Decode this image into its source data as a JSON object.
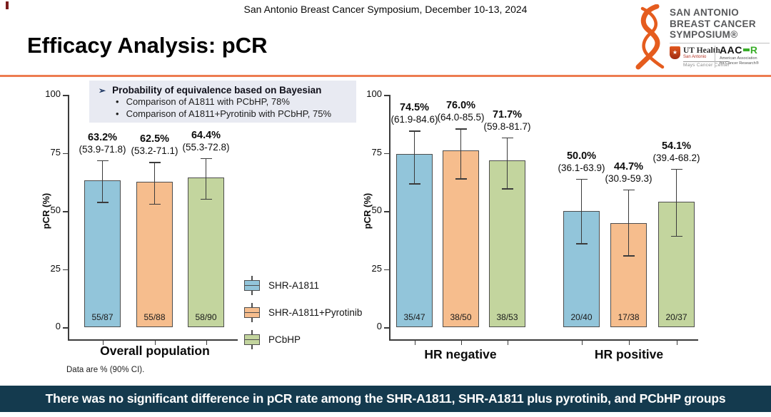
{
  "header": {
    "conference": "San Antonio Breast Cancer Symposium, December 10-13, 2024",
    "title": "Efficacy Analysis: pCR"
  },
  "logo": {
    "name_line1": "SAN ANTONIO",
    "name_line2": "BREAST CANCER",
    "name_line3": "SYMPOSIUM®",
    "ut_health": {
      "star": "★",
      "name": "UT Health",
      "city": "San Antonio",
      "center": "Mays Cancer Center"
    },
    "aacr": {
      "abbr_black": "AAC",
      "abbr_green": "R",
      "tagline_line1": "American Association",
      "tagline_line2": "for Cancer Research®"
    }
  },
  "info_box": {
    "arrow_marker": "➢",
    "bullet_marker": "•",
    "heading": "Probability of equivalence based on Bayesian",
    "bullets": [
      "Comparison of A1811 with PCbHP, 78%",
      "Comparison of A1811+Pyrotinib with PCbHP, 75%"
    ]
  },
  "legend": {
    "items": [
      {
        "label": "SHR-A1811",
        "color": "#92c5da"
      },
      {
        "label": "SHR-A1811+Pyrotinib",
        "color": "#f6bd8d"
      },
      {
        "label": "PCbHP",
        "color": "#c3d59e"
      }
    ]
  },
  "footnote": "Data are % (90% CI).",
  "banner": "There was no significant difference in pCR rate among the SHR-A1811, SHR-A1811 plus pyrotinib, and PCbHP groups",
  "colors": {
    "accent_rule": "#ed7c50",
    "banner_bg": "#143a4e",
    "info_box_bg": "#e8eaf2",
    "sabcs_orange": "#e55c1e",
    "aacr_green": "#3aae2a"
  },
  "chart_data": [
    {
      "type": "bar",
      "title": "",
      "xlabel": "Overall population",
      "ylabel": "pCR (%)",
      "ylim": [
        0,
        100
      ],
      "yticks": [
        0,
        25,
        50,
        75,
        100
      ],
      "grid": false,
      "error_bars": "90% CI",
      "groups": [
        {
          "label": "Overall population",
          "bars": [
            {
              "series": "SHR-A1811",
              "value": 63.2,
              "ci_low": 53.9,
              "ci_high": 71.8,
              "pct_label": "63.2%",
              "ci_label": "(53.9-71.8)",
              "fraction": "55/87"
            },
            {
              "series": "SHR-A1811+Pyrotinib",
              "value": 62.5,
              "ci_low": 53.2,
              "ci_high": 71.1,
              "pct_label": "62.5%",
              "ci_label": "(53.2-71.1)",
              "fraction": "55/88"
            },
            {
              "series": "PCbHP",
              "value": 64.4,
              "ci_low": 55.3,
              "ci_high": 72.8,
              "pct_label": "64.4%",
              "ci_label": "(55.3-72.8)",
              "fraction": "58/90"
            }
          ]
        }
      ]
    },
    {
      "type": "bar",
      "title": "",
      "xlabel": "",
      "ylabel": "pCR (%)",
      "ylim": [
        0,
        100
      ],
      "yticks": [
        0,
        25,
        50,
        75,
        100
      ],
      "grid": false,
      "error_bars": "90% CI",
      "groups": [
        {
          "label": "HR negative",
          "bars": [
            {
              "series": "SHR-A1811",
              "value": 74.5,
              "ci_low": 61.9,
              "ci_high": 84.6,
              "pct_label": "74.5%",
              "ci_label": "(61.9-84.6)",
              "fraction": "35/47"
            },
            {
              "series": "SHR-A1811+Pyrotinib",
              "value": 76.0,
              "ci_low": 64.0,
              "ci_high": 85.5,
              "pct_label": "76.0%",
              "ci_label": "(64.0-85.5)",
              "fraction": "38/50"
            },
            {
              "series": "PCbHP",
              "value": 71.7,
              "ci_low": 59.8,
              "ci_high": 81.7,
              "pct_label": "71.7%",
              "ci_label": "(59.8-81.7)",
              "fraction": "38/53"
            }
          ]
        },
        {
          "label": "HR positive",
          "bars": [
            {
              "series": "SHR-A1811",
              "value": 50.0,
              "ci_low": 36.1,
              "ci_high": 63.9,
              "pct_label": "50.0%",
              "ci_label": "(36.1-63.9)",
              "fraction": "20/40"
            },
            {
              "series": "SHR-A1811+Pyrotinib",
              "value": 44.7,
              "ci_low": 30.9,
              "ci_high": 59.3,
              "pct_label": "44.7%",
              "ci_label": "(30.9-59.3)",
              "fraction": "17/38"
            },
            {
              "series": "PCbHP",
              "value": 54.1,
              "ci_low": 39.4,
              "ci_high": 68.2,
              "pct_label": "54.1%",
              "ci_label": "(39.4-68.2)",
              "fraction": "20/37"
            }
          ]
        }
      ]
    }
  ]
}
